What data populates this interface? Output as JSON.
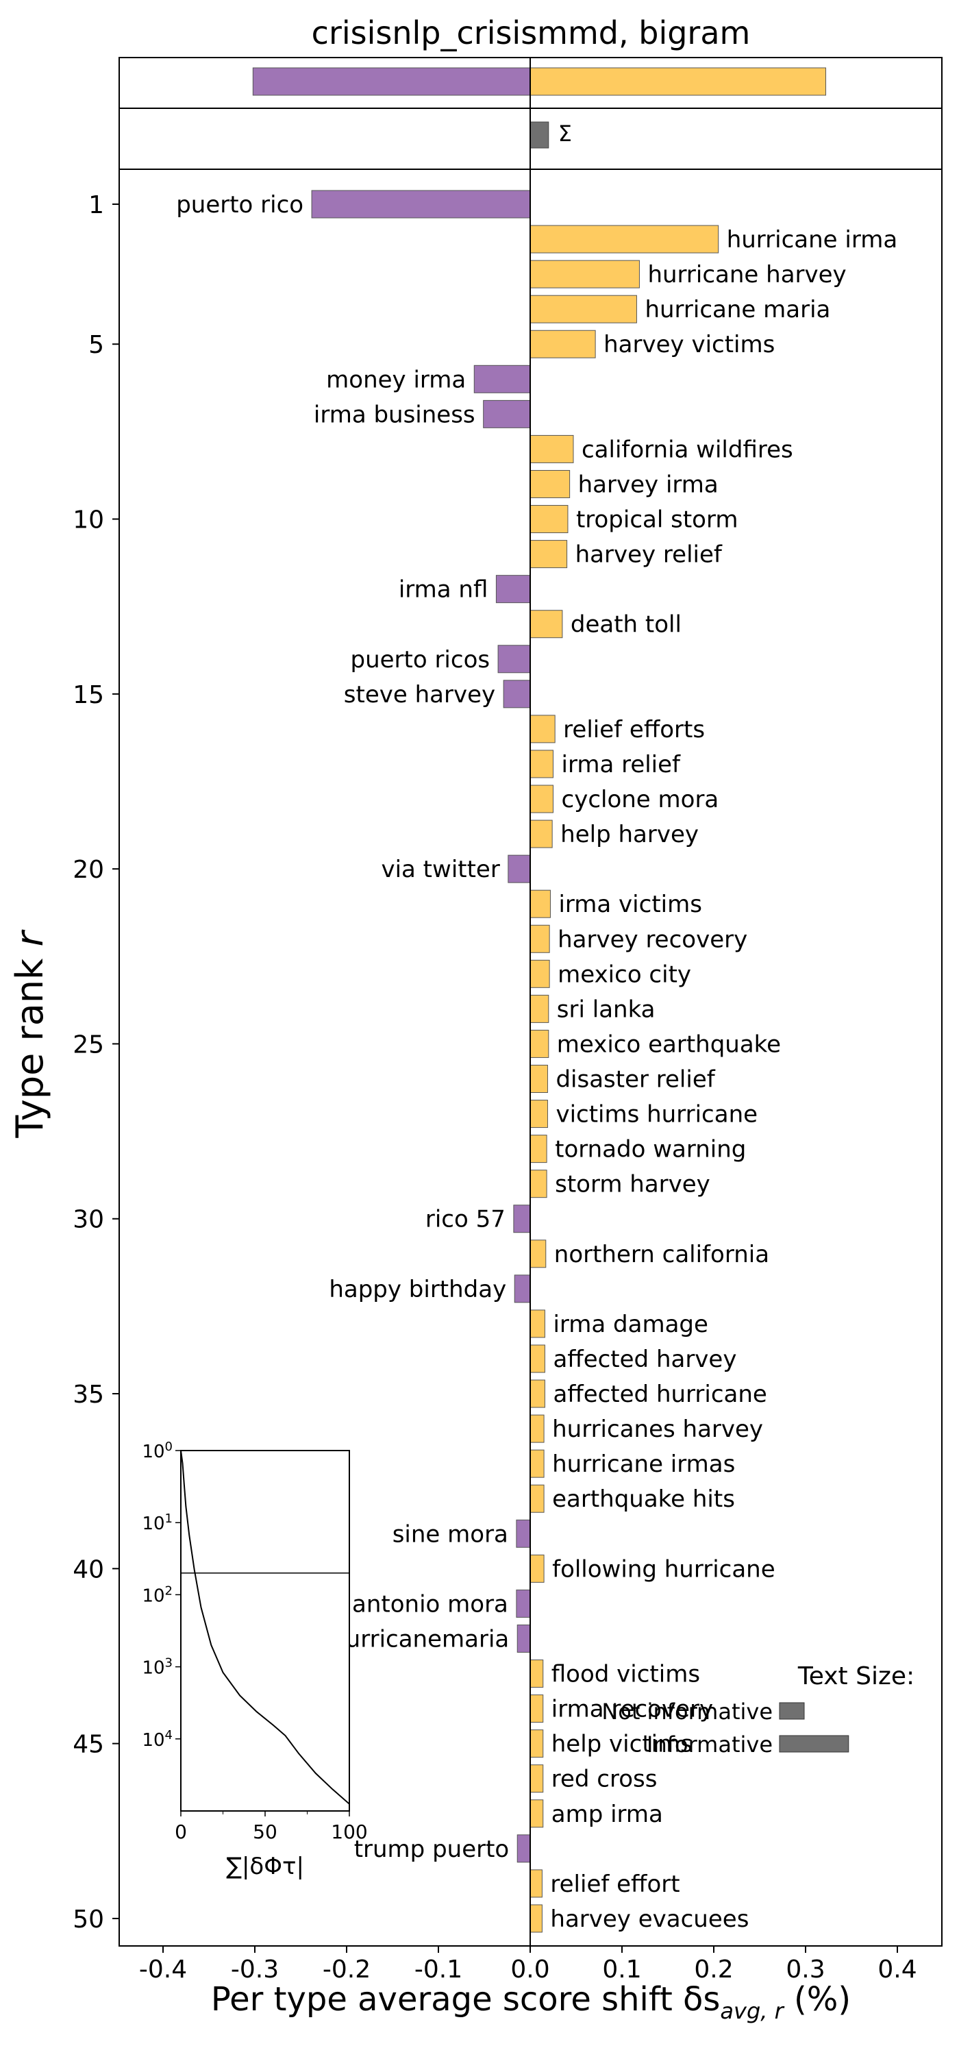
{
  "chart_data": {
    "type": "bar",
    "title": "crisisnlp_crisismmd, bigram",
    "xlabel": "Per type average score shift δs",
    "xlabel_sub": "avg, r",
    "xlabel_unit": " (%)",
    "ylabel": "Type rank ",
    "ylabel_var": "r",
    "xlim": [
      -0.45,
      0.45
    ],
    "xticks": [
      {
        "value": -0.4,
        "label": "-0.4"
      },
      {
        "value": -0.3,
        "label": "-0.3"
      },
      {
        "value": -0.2,
        "label": "-0.2"
      },
      {
        "value": -0.1,
        "label": "-0.1"
      },
      {
        "value": 0.0,
        "label": "0.0"
      },
      {
        "value": 0.1,
        "label": "0.1"
      },
      {
        "value": 0.2,
        "label": "0.2"
      },
      {
        "value": 0.3,
        "label": "0.3"
      },
      {
        "value": 0.4,
        "label": "0.4"
      }
    ],
    "yticks": [
      {
        "value": 1,
        "label": "1"
      },
      {
        "value": 5,
        "label": "5"
      },
      {
        "value": 10,
        "label": "10"
      },
      {
        "value": 15,
        "label": "15"
      },
      {
        "value": 20,
        "label": "20"
      },
      {
        "value": 25,
        "label": "25"
      },
      {
        "value": 30,
        "label": "30"
      },
      {
        "value": 35,
        "label": "35"
      },
      {
        "value": 40,
        "label": "40"
      },
      {
        "value": 45,
        "label": "45"
      },
      {
        "value": 50,
        "label": "50"
      }
    ],
    "colors": {
      "negative": "#9f75b5",
      "positive": "#fecb60",
      "sum": "#707070",
      "edge": "#555555"
    },
    "summary": {
      "negative_total": -0.302,
      "positive_total": 0.322,
      "sum_value": 0.02,
      "sum_label": "Σ"
    },
    "bars": [
      {
        "rank": 1,
        "label": "puerto rico",
        "value": -0.238
      },
      {
        "rank": 2,
        "label": "hurricane irma",
        "value": 0.205
      },
      {
        "rank": 3,
        "label": "hurricane harvey",
        "value": 0.119
      },
      {
        "rank": 4,
        "label": "hurricane maria",
        "value": 0.116
      },
      {
        "rank": 5,
        "label": "harvey victims",
        "value": 0.071
      },
      {
        "rank": 6,
        "label": "money irma",
        "value": -0.061
      },
      {
        "rank": 7,
        "label": "irma business",
        "value": -0.051
      },
      {
        "rank": 8,
        "label": "california wildfires",
        "value": 0.047
      },
      {
        "rank": 9,
        "label": "harvey irma",
        "value": 0.043
      },
      {
        "rank": 10,
        "label": "tropical storm",
        "value": 0.041
      },
      {
        "rank": 11,
        "label": "harvey relief",
        "value": 0.04
      },
      {
        "rank": 12,
        "label": "irma nfl",
        "value": -0.037
      },
      {
        "rank": 13,
        "label": "death toll",
        "value": 0.035
      },
      {
        "rank": 14,
        "label": "puerto ricos",
        "value": -0.035
      },
      {
        "rank": 15,
        "label": "steve harvey",
        "value": -0.029
      },
      {
        "rank": 16,
        "label": "relief efforts",
        "value": 0.027
      },
      {
        "rank": 17,
        "label": "irma relief",
        "value": 0.025
      },
      {
        "rank": 18,
        "label": "cyclone mora",
        "value": 0.025
      },
      {
        "rank": 19,
        "label": "help harvey",
        "value": 0.024
      },
      {
        "rank": 20,
        "label": "via twitter",
        "value": -0.024
      },
      {
        "rank": 21,
        "label": "irma victims",
        "value": 0.022
      },
      {
        "rank": 22,
        "label": "harvey recovery",
        "value": 0.021
      },
      {
        "rank": 23,
        "label": "mexico city",
        "value": 0.021
      },
      {
        "rank": 24,
        "label": "sri lanka",
        "value": 0.02
      },
      {
        "rank": 25,
        "label": "mexico earthquake",
        "value": 0.02
      },
      {
        "rank": 26,
        "label": "disaster relief",
        "value": 0.019
      },
      {
        "rank": 27,
        "label": "victims hurricane",
        "value": 0.019
      },
      {
        "rank": 28,
        "label": "tornado warning",
        "value": 0.018
      },
      {
        "rank": 29,
        "label": "storm harvey",
        "value": 0.018
      },
      {
        "rank": 30,
        "label": "rico 57",
        "value": -0.018
      },
      {
        "rank": 31,
        "label": "northern california",
        "value": 0.017
      },
      {
        "rank": 32,
        "label": "happy birthday",
        "value": -0.017
      },
      {
        "rank": 33,
        "label": "irma damage",
        "value": 0.016
      },
      {
        "rank": 34,
        "label": "affected harvey",
        "value": 0.016
      },
      {
        "rank": 35,
        "label": "affected hurricane",
        "value": 0.016
      },
      {
        "rank": 36,
        "label": "hurricanes harvey",
        "value": 0.015
      },
      {
        "rank": 37,
        "label": "hurricane irmas",
        "value": 0.015
      },
      {
        "rank": 38,
        "label": "earthquake hits",
        "value": 0.015
      },
      {
        "rank": 39,
        "label": "sine mora",
        "value": -0.015
      },
      {
        "rank": 40,
        "label": "following hurricane",
        "value": 0.015
      },
      {
        "rank": 41,
        "label": "antonio mora",
        "value": -0.015
      },
      {
        "rank": 42,
        "label": "puertorico hurricanemaria",
        "value": -0.014
      },
      {
        "rank": 43,
        "label": "flood victims",
        "value": 0.014
      },
      {
        "rank": 44,
        "label": "irma recovery",
        "value": 0.014
      },
      {
        "rank": 45,
        "label": "help victims",
        "value": 0.014
      },
      {
        "rank": 46,
        "label": "red cross",
        "value": 0.014
      },
      {
        "rank": 47,
        "label": "amp irma",
        "value": 0.014
      },
      {
        "rank": 48,
        "label": "trump puerto",
        "value": -0.014
      },
      {
        "rank": 49,
        "label": "relief effort",
        "value": 0.013
      },
      {
        "rank": 50,
        "label": "harvey evacuees",
        "value": 0.013
      }
    ],
    "legend": {
      "title": "Text Size:",
      "entries": [
        {
          "label": "Not informative",
          "size": 1
        },
        {
          "label": "Informative",
          "size": 2.8
        }
      ]
    },
    "inset": {
      "xlabel": "∑|δΦτ|",
      "xlim": [
        0,
        100
      ],
      "xticks": [
        {
          "value": 0,
          "label": "0"
        },
        {
          "value": 50,
          "label": "50"
        },
        {
          "value": 100,
          "label": "100"
        }
      ],
      "yscale": "log",
      "ylim": [
        1,
        100000
      ],
      "yticks": [
        {
          "exp": 0,
          "base": "10",
          "sup": "0"
        },
        {
          "exp": 1,
          "base": "10",
          "sup": "1"
        },
        {
          "exp": 2,
          "base": "10",
          "sup": "2"
        },
        {
          "exp": 3,
          "base": "10",
          "sup": "3"
        },
        {
          "exp": 4,
          "base": "10",
          "sup": "4"
        }
      ],
      "reference_rank": 50,
      "curve": [
        [
          0,
          1
        ],
        [
          1,
          1.5
        ],
        [
          2,
          3
        ],
        [
          3,
          6
        ],
        [
          5,
          15
        ],
        [
          8,
          45
        ],
        [
          12,
          150
        ],
        [
          18,
          500
        ],
        [
          25,
          1200
        ],
        [
          35,
          2500
        ],
        [
          45,
          4200
        ],
        [
          55,
          6500
        ],
        [
          62,
          9000
        ],
        [
          70,
          16000
        ],
        [
          80,
          30000
        ],
        [
          90,
          50000
        ],
        [
          100,
          80000
        ]
      ]
    }
  }
}
